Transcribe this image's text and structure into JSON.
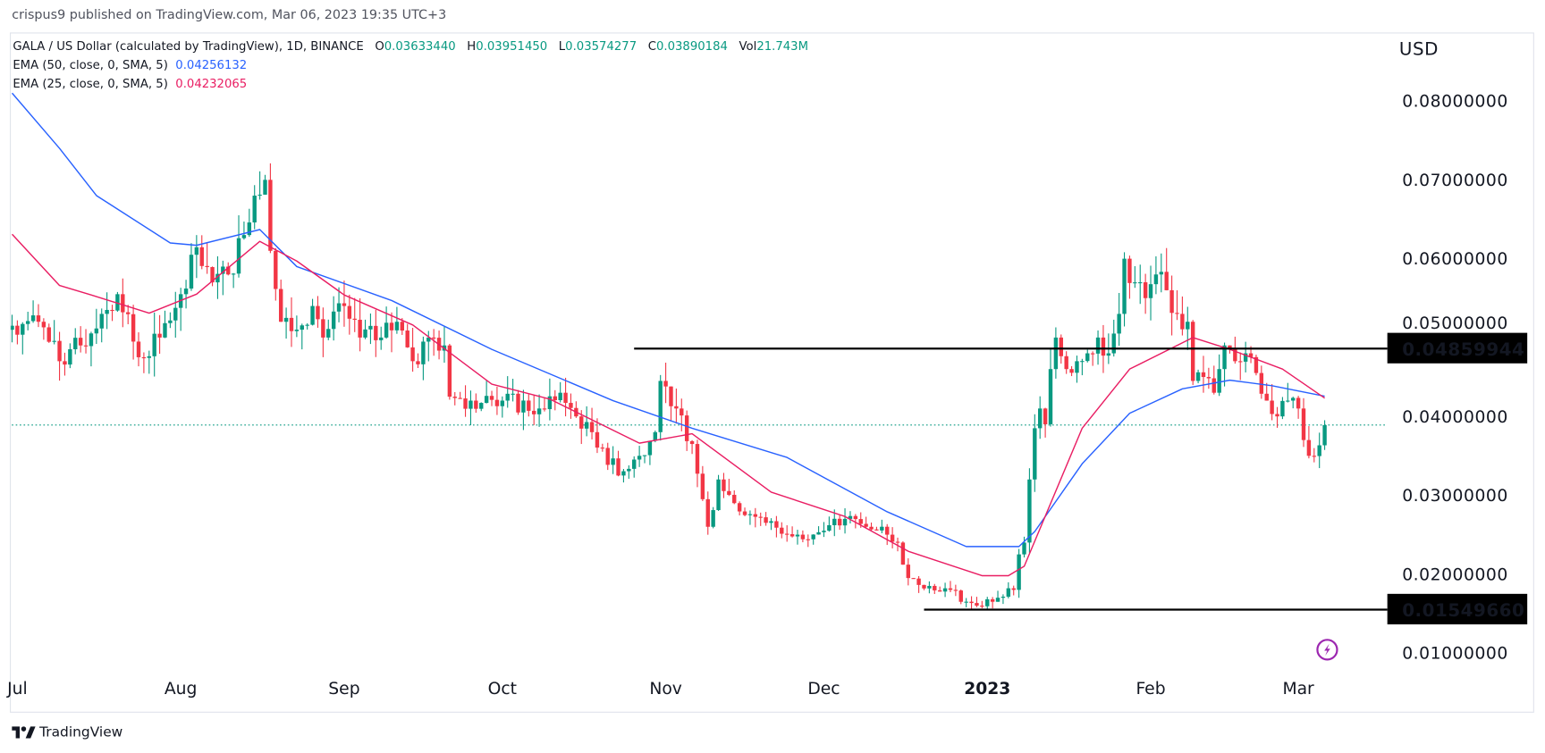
{
  "header": {
    "published": "crispus9 published on TradingView.com, Mar 06, 2023 19:35 UTC+3"
  },
  "legend": {
    "symbol": "GALA / US Dollar (calculated by TradingView), 1D, BINANCE",
    "o_label": "O",
    "o": "0.03633440",
    "h_label": "H",
    "h": "0.03951450",
    "l_label": "L",
    "l": "0.03574277",
    "c_label": "C",
    "c": "0.03890184",
    "vol_label": "Vol",
    "vol": "21.743M",
    "ema50_label": "EMA (50, close, 0, SMA, 5)",
    "ema50": "0.04256132",
    "ema25_label": "EMA (25, close, 0, SMA, 5)",
    "ema25": "0.04232065"
  },
  "footer": {
    "brand": "TradingView"
  },
  "colors": {
    "up": "#089981",
    "down": "#f23645",
    "ema50": "#2962ff",
    "ema25": "#e91e63",
    "level_line": "#000000",
    "lightning": "#9c27b0"
  },
  "chart_data": {
    "type": "candlestick",
    "currency_label": "USD",
    "timeframe": "1D",
    "y_ticks": [
      "0.08000000",
      "0.07000000",
      "0.06000000",
      "0.05000000",
      "0.04000000",
      "0.03000000",
      "0.02000000",
      "0.01000000"
    ],
    "y_tick_values": [
      0.08,
      0.07,
      0.06,
      0.05,
      0.04,
      0.03,
      0.02,
      0.01
    ],
    "x_ticks": [
      {
        "label": "Jul",
        "date": "2022-07-01"
      },
      {
        "label": "Aug",
        "date": "2022-08-01"
      },
      {
        "label": "Sep",
        "date": "2022-09-01"
      },
      {
        "label": "Oct",
        "date": "2022-10-01"
      },
      {
        "label": "Nov",
        "date": "2022-11-01"
      },
      {
        "label": "Dec",
        "date": "2022-12-01"
      },
      {
        "label": "2023",
        "date": "2023-01-01",
        "bold": true
      },
      {
        "label": "Feb",
        "date": "2023-02-01"
      },
      {
        "label": "Mar",
        "date": "2023-03-01"
      }
    ],
    "horizontal_levels": [
      {
        "label": "0.04859944",
        "value": 0.04859944,
        "from": "2022-10-26"
      },
      {
        "label": "0.01549660",
        "value": 0.0154966,
        "from": "2022-12-20"
      }
    ],
    "last_price": 0.03890184,
    "close_path": [
      [
        "2022-06-30",
        0.0515
      ],
      [
        "2022-07-05",
        0.052
      ],
      [
        "2022-07-09",
        0.047
      ],
      [
        "2022-07-13",
        0.049
      ],
      [
        "2022-07-17",
        0.053
      ],
      [
        "2022-07-20",
        0.0555
      ],
      [
        "2022-07-24",
        0.0475
      ],
      [
        "2022-07-28",
        0.05
      ],
      [
        "2022-08-01",
        0.0555
      ],
      [
        "2022-08-03",
        0.0605
      ],
      [
        "2022-08-07",
        0.057
      ],
      [
        "2022-08-10",
        0.058
      ],
      [
        "2022-08-13",
        0.063
      ],
      [
        "2022-08-15",
        0.068
      ],
      [
        "2022-08-17",
        0.07
      ],
      [
        "2022-08-18",
        0.061
      ],
      [
        "2022-08-20",
        0.052
      ],
      [
        "2022-08-23",
        0.051
      ],
      [
        "2022-08-26",
        0.054
      ],
      [
        "2022-08-28",
        0.05
      ],
      [
        "2022-09-01",
        0.054
      ],
      [
        "2022-09-04",
        0.05
      ],
      [
        "2022-09-08",
        0.05
      ],
      [
        "2022-09-11",
        0.052
      ],
      [
        "2022-09-14",
        0.047
      ],
      [
        "2022-09-17",
        0.05
      ],
      [
        "2022-09-20",
        0.049
      ],
      [
        "2022-09-21",
        0.0425
      ],
      [
        "2022-09-25",
        0.042
      ],
      [
        "2022-10-01",
        0.042
      ],
      [
        "2022-10-08",
        0.041
      ],
      [
        "2022-10-12",
        0.043
      ],
      [
        "2022-10-15",
        0.04
      ],
      [
        "2022-10-18",
        0.038
      ],
      [
        "2022-10-20",
        0.036
      ],
      [
        "2022-10-23",
        0.0325
      ],
      [
        "2022-10-27",
        0.035
      ],
      [
        "2022-10-30",
        0.038
      ],
      [
        "2022-10-31",
        0.0445
      ],
      [
        "2022-11-03",
        0.041
      ],
      [
        "2022-11-06",
        0.0365
      ],
      [
        "2022-11-08",
        0.0295
      ],
      [
        "2022-11-09",
        0.026
      ],
      [
        "2022-11-11",
        0.032
      ],
      [
        "2022-11-14",
        0.029
      ],
      [
        "2022-11-20",
        0.0265
      ],
      [
        "2022-11-26",
        0.025
      ],
      [
        "2022-12-01",
        0.0255
      ],
      [
        "2022-12-05",
        0.027
      ],
      [
        "2022-12-09",
        0.026
      ],
      [
        "2022-12-13",
        0.025
      ],
      [
        "2022-12-15",
        0.024
      ],
      [
        "2022-12-17",
        0.0195
      ],
      [
        "2022-12-21",
        0.0185
      ],
      [
        "2022-12-25",
        0.018
      ],
      [
        "2022-12-28",
        0.0165
      ],
      [
        "2022-12-30",
        0.016
      ],
      [
        "2023-01-03",
        0.017
      ],
      [
        "2023-01-06",
        0.018
      ],
      [
        "2023-01-07",
        0.0225
      ],
      [
        "2023-01-08",
        0.024
      ],
      [
        "2023-01-09",
        0.032
      ],
      [
        "2023-01-10",
        0.0385
      ],
      [
        "2023-01-11",
        0.041
      ],
      [
        "2023-01-12",
        0.039
      ],
      [
        "2023-01-13",
        0.046
      ],
      [
        "2023-01-14",
        0.05
      ],
      [
        "2023-01-16",
        0.046
      ],
      [
        "2023-01-18",
        0.047
      ],
      [
        "2023-01-20",
        0.048
      ],
      [
        "2023-01-22",
        0.05
      ],
      [
        "2023-01-24",
        0.048
      ],
      [
        "2023-01-26",
        0.053
      ],
      [
        "2023-01-27",
        0.06
      ],
      [
        "2023-01-29",
        0.057
      ],
      [
        "2023-01-31",
        0.055
      ],
      [
        "2023-02-02",
        0.058
      ],
      [
        "2023-02-04",
        0.056
      ],
      [
        "2023-02-06",
        0.053
      ],
      [
        "2023-02-08",
        0.052
      ],
      [
        "2023-02-09",
        0.0445
      ],
      [
        "2023-02-11",
        0.045
      ],
      [
        "2023-02-13",
        0.043
      ],
      [
        "2023-02-14",
        0.046
      ],
      [
        "2023-02-15",
        0.049
      ],
      [
        "2023-02-17",
        0.047
      ],
      [
        "2023-02-19",
        0.048
      ],
      [
        "2023-02-21",
        0.0455
      ],
      [
        "2023-02-23",
        0.042
      ],
      [
        "2023-02-25",
        0.04
      ],
      [
        "2023-02-27",
        0.042
      ],
      [
        "2023-03-01",
        0.041
      ],
      [
        "2023-03-02",
        0.037
      ],
      [
        "2023-03-03",
        0.035
      ],
      [
        "2023-03-05",
        0.0363344
      ],
      [
        "2023-03-06",
        0.03890184
      ]
    ],
    "series": [
      {
        "name": "EMA (50, close, 0, SMA, 5)",
        "points": [
          [
            "2022-06-30",
            0.081
          ],
          [
            "2022-07-09",
            0.074
          ],
          [
            "2022-07-16",
            0.068
          ],
          [
            "2022-07-30",
            0.062
          ],
          [
            "2022-08-04",
            0.0617
          ],
          [
            "2022-08-16",
            0.0637
          ],
          [
            "2022-08-23",
            0.059
          ],
          [
            "2022-09-10",
            0.0547
          ],
          [
            "2022-09-29",
            0.0485
          ],
          [
            "2022-10-22",
            0.042
          ],
          [
            "2022-11-06",
            0.0385
          ],
          [
            "2022-11-24",
            0.0348
          ],
          [
            "2022-12-13",
            0.0279
          ],
          [
            "2022-12-28",
            0.0235
          ],
          [
            "2023-01-07",
            0.0235
          ],
          [
            "2023-01-10",
            0.0254
          ],
          [
            "2023-01-19",
            0.034
          ],
          [
            "2023-01-28",
            0.0404
          ],
          [
            "2023-02-07",
            0.0435
          ],
          [
            "2023-02-16",
            0.0446
          ],
          [
            "2023-02-24",
            0.0439
          ],
          [
            "2023-03-06",
            0.04256132
          ]
        ]
      },
      {
        "name": "EMA (25, close, 0, SMA, 5)",
        "points": [
          [
            "2022-06-30",
            0.0631
          ],
          [
            "2022-07-09",
            0.0566
          ],
          [
            "2022-07-15",
            0.0554
          ],
          [
            "2022-07-26",
            0.0531
          ],
          [
            "2022-08-04",
            0.0555
          ],
          [
            "2022-08-16",
            0.0622
          ],
          [
            "2022-08-23",
            0.0597
          ],
          [
            "2022-09-01",
            0.0554
          ],
          [
            "2022-09-14",
            0.0516
          ],
          [
            "2022-09-29",
            0.0441
          ],
          [
            "2022-10-10",
            0.0422
          ],
          [
            "2022-10-27",
            0.0366
          ],
          [
            "2022-11-06",
            0.0378
          ],
          [
            "2022-11-21",
            0.0304
          ],
          [
            "2022-12-05",
            0.0273
          ],
          [
            "2022-12-17",
            0.0229
          ],
          [
            "2022-12-31",
            0.0198
          ],
          [
            "2023-01-05",
            0.0198
          ],
          [
            "2023-01-08",
            0.021
          ],
          [
            "2023-01-19",
            0.0385
          ],
          [
            "2023-01-28",
            0.046
          ],
          [
            "2023-02-09",
            0.05
          ],
          [
            "2023-02-16",
            0.0485
          ],
          [
            "2023-02-26",
            0.046
          ],
          [
            "2023-03-06",
            0.04232065
          ]
        ]
      }
    ]
  }
}
